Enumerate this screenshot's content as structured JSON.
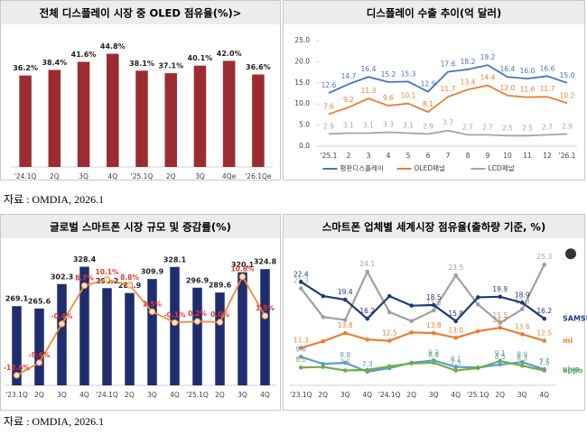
{
  "chart_data": [
    {
      "type": "bar",
      "title": "전체 디스플레이 시장 중 OLED 점유율(%)>",
      "categories": [
        "'24.1Q",
        "2Q",
        "3Q",
        "4Q",
        "'25.1Q",
        "2Q",
        "3Q",
        "4Qe",
        "'26.1Qe"
      ],
      "ylim": [
        0,
        50
      ],
      "series": [
        {
          "color": "#9b2d30",
          "values": [
            36.2,
            38.4,
            41.6,
            44.8,
            38.1,
            37.1,
            40.1,
            42.0,
            36.6
          ],
          "value_labels": [
            "36.2%",
            "38.4%",
            "41.6%",
            "44.8%",
            "38.1%",
            "37.1%",
            "40.1%",
            "42.0%",
            "36.6%"
          ]
        }
      ]
    },
    {
      "type": "line",
      "title": "디스플레이 수출 추이(억 달러)",
      "categories": [
        "'25.1",
        "2",
        "3",
        "4",
        "5",
        "6",
        "7",
        "8",
        "9",
        "10",
        "11",
        "12",
        "'26.1"
      ],
      "ylim": [
        0,
        25
      ],
      "yticks": [
        {
          "value": 0,
          "label": "0.0"
        },
        {
          "value": 5,
          "label": "5.0"
        },
        {
          "value": 10,
          "label": "10.0"
        },
        {
          "value": 15,
          "label": "15.0"
        },
        {
          "value": 20,
          "label": "20.0"
        },
        {
          "value": 25,
          "label": "25.0"
        }
      ],
      "legend": "bottom",
      "series": [
        {
          "name": "평판디스플레이",
          "color": "#4472c4",
          "values": [
            12.6,
            14.7,
            16.4,
            15.2,
            15.3,
            12.9,
            17.6,
            18.2,
            19.2,
            16.4,
            16.0,
            16.6,
            15.0
          ],
          "value_labels": [
            "12.6",
            "14.7",
            "16.4",
            "15.2",
            "15.3",
            "12.9",
            "17.6",
            "18.2",
            "19.2",
            "16.4",
            "16.0",
            "16.6",
            "15.0"
          ]
        },
        {
          "name": "OLED패널",
          "color": "#ed7d31",
          "values": [
            7.6,
            9.2,
            11.3,
            9.6,
            10.1,
            8.1,
            11.7,
            13.4,
            14.4,
            12.0,
            11.6,
            11.7,
            10.2
          ],
          "value_labels": [
            "7.6",
            "9.2",
            "11.3",
            "9.6",
            "10.1",
            "8.1",
            "11.7",
            "13.4",
            "14.4",
            "12.0",
            "11.6",
            "11.7",
            "10.2"
          ]
        },
        {
          "name": "LCD패널",
          "color": "#a5a5a5",
          "values": [
            2.9,
            3.1,
            3.1,
            3.3,
            3.1,
            2.9,
            3.7,
            2.7,
            2.7,
            2.5,
            2.5,
            2.7,
            2.9
          ],
          "value_labels": [
            "2.9",
            "3.1",
            "3.1",
            "3.3",
            "3.1",
            "2.9",
            "3.7",
            "2.7",
            "2.7",
            "2.5",
            "2.5",
            "2.7",
            "2.9"
          ]
        }
      ]
    },
    {
      "type": "bar",
      "title": "글로벌 스마트폰 시장 규모 및 증감률(%)",
      "categories": [
        "'23.1Q",
        "2Q",
        "3Q",
        "4Q",
        "'24.1Q",
        "2Q",
        "3Q",
        "4Q",
        "'25.1Q",
        "2Q",
        "3Q",
        "4Q"
      ],
      "ylim": [
        150,
        340
      ],
      "y2lim": [
        -15,
        15
      ],
      "series": [
        {
          "color": "#1f2d6e",
          "values": [
            269.1,
            265.6,
            302.3,
            328.4,
            296.2,
            288.9,
            309.9,
            328.1,
            296.9,
            289.6,
            320.1,
            324.8
          ]
        },
        {
          "type": "line",
          "axis": "y2",
          "color": "#f08a3c",
          "label_color": "#e03c31",
          "values": [
            -12.6,
            -9.6,
            -0.4,
            8.7,
            10.1,
            8.8,
            2.5,
            -0.1,
            0.2,
            0.0,
            10.8,
            1.5
          ],
          "value_labels": [
            "-12.6%",
            "-9.6%",
            "-0.4%",
            "8.7%",
            "10.1%",
            "8.8%",
            "2.5%",
            "-0.1%",
            "0.2%",
            "0.0%",
            "10.8%",
            "1.5%"
          ]
        }
      ]
    },
    {
      "type": "line",
      "title": "스마트폰 업체별 세계시장 점유율(출하량 기준, %)",
      "categories": [
        "'23.1Q",
        "2Q",
        "3Q",
        "4Q",
        "'24.1Q",
        "2Q",
        "3Q",
        "4Q",
        "'25.1Q",
        "2Q",
        "3Q",
        "4Q"
      ],
      "ylim": [
        5,
        27
      ],
      "legend": "right",
      "series": [
        {
          "color": "#a0a0a0",
          "values": [
            21.3,
            16.5,
            16.0,
            24.1,
            17.3,
            15.8,
            17.6,
            23.5,
            18.6,
            15.5,
            17.8,
            25.3
          ],
          "value_labels": [
            "21.3",
            null,
            null,
            "24.1",
            null,
            null,
            "17.6",
            "23.5",
            null,
            "15.5",
            "17.8",
            "25.3"
          ]
        },
        {
          "name": "SAMSUNG",
          "color": "#1f3a7a",
          "values": [
            22.4,
            20.0,
            19.4,
            16.2,
            20.0,
            18.4,
            18.5,
            15.8,
            19.8,
            19.9,
            18.9,
            16.2
          ],
          "value_labels": [
            "22.4",
            null,
            "19.4",
            "16.2",
            null,
            null,
            "18.5",
            "15.8",
            null,
            "19.9",
            "18.9",
            "16.2"
          ]
        },
        {
          "name": "mi",
          "color": "#ed7d31",
          "values": [
            11.3,
            12.4,
            13.8,
            12.7,
            12.5,
            13.9,
            13.8,
            13.0,
            14.1,
            14.7,
            13.6,
            12.5
          ],
          "value_labels": [
            "11.3",
            null,
            "13.8",
            null,
            "12.5",
            null,
            "13.8",
            "13.0",
            null,
            "14.7",
            "13.6",
            "12.5"
          ]
        },
        {
          "name": "vivo",
          "color": "#5b9bd5",
          "values": [
            9.8,
            8.6,
            8.8,
            7.3,
            7.9,
            8.8,
            9.2,
            8.1,
            8.0,
            8.5,
            8.9,
            7.7
          ],
          "value_labels": [
            "9.8",
            null,
            "8.8",
            "7.3",
            null,
            null,
            "9.2",
            "8.1",
            null,
            "8.5",
            "8.9",
            "7.7"
          ]
        },
        {
          "name": "oppo",
          "color": "#70ad47",
          "values": [
            8.0,
            8.1,
            7.5,
            7.6,
            8.2,
            8.7,
            8.8,
            7.5,
            7.9,
            9.1,
            8.3,
            7.5
          ],
          "value_labels": [
            "8.0",
            null,
            "7.5",
            null,
            null,
            null,
            "8.8",
            "7.5",
            null,
            "9.1",
            "8.3",
            "7.5"
          ]
        }
      ]
    }
  ],
  "sources": [
    "자료 : OMDIA, 2026.1",
    "자료 : OMDIA, 2026.1"
  ]
}
